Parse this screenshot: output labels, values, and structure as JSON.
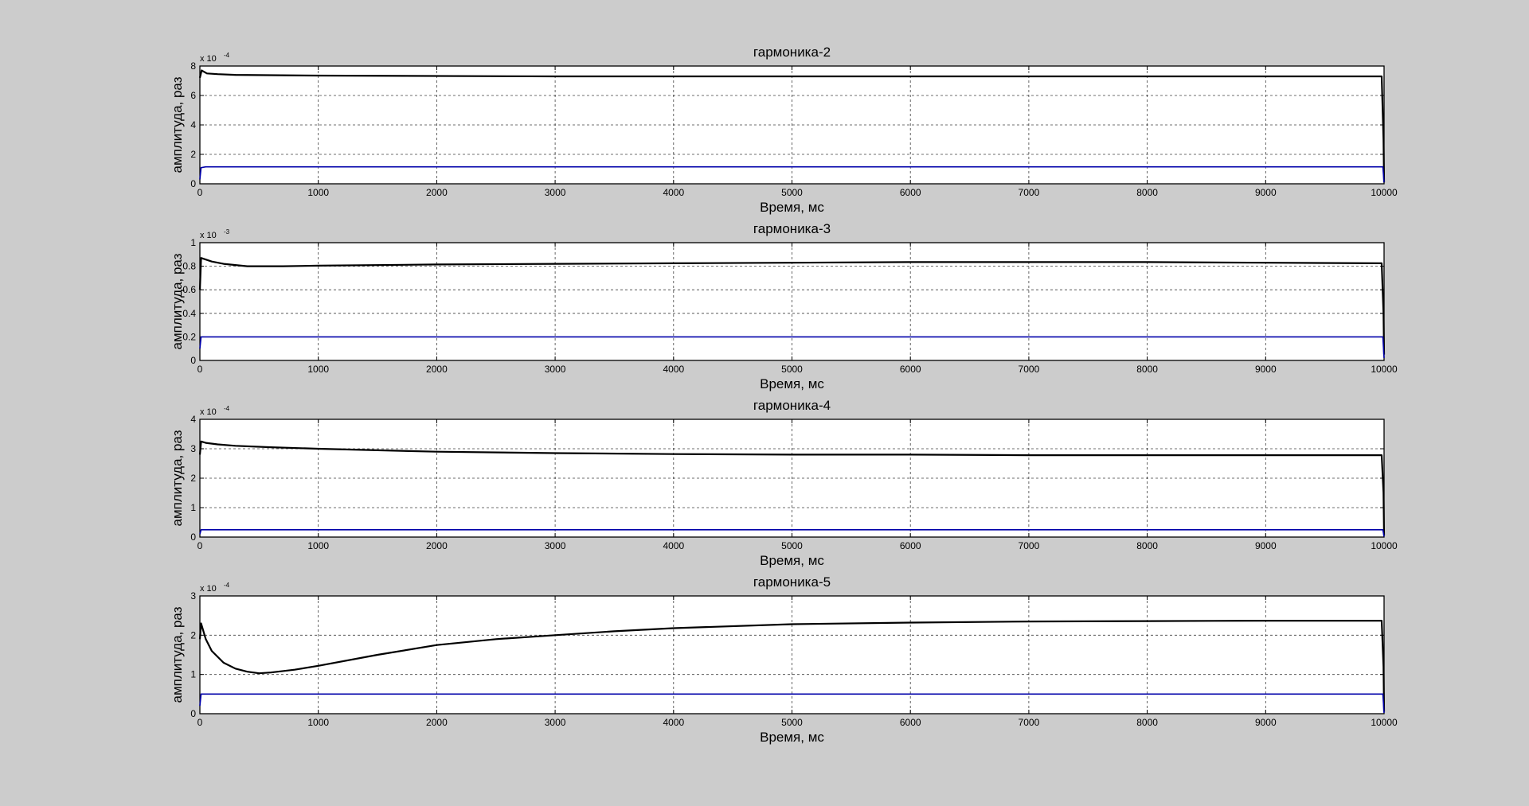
{
  "figure": {
    "background": "#cccccc"
  },
  "chart_data": [
    {
      "type": "line",
      "title": "гармоника-2",
      "xlabel": "Время, мс",
      "ylabel": "амплитуда, раз",
      "xlim": [
        0,
        10000
      ],
      "ylim": [
        0,
        8
      ],
      "x_ticks": [
        "0",
        "1000",
        "2000",
        "3000",
        "4000",
        "5000",
        "6000",
        "7000",
        "8000",
        "9000",
        "10000"
      ],
      "y_ticks": [
        "0",
        "2",
        "4",
        "6",
        "8"
      ],
      "y_exponent_base": "x 10",
      "y_exponent_power": "-4",
      "grid": true,
      "series": [
        {
          "color": "#000000",
          "x": [
            0,
            15,
            60,
            150,
            300,
            1000,
            3000,
            6000,
            9000,
            9980,
            9995,
            10000
          ],
          "y": [
            7.2,
            7.7,
            7.5,
            7.45,
            7.4,
            7.35,
            7.3,
            7.3,
            7.3,
            7.3,
            3.0,
            0.1
          ]
        },
        {
          "color": "#0000aa",
          "x": [
            0,
            10,
            50,
            1000,
            5000,
            9990,
            10000
          ],
          "y": [
            0.3,
            1.1,
            1.15,
            1.15,
            1.15,
            1.15,
            0.1
          ]
        }
      ]
    },
    {
      "type": "line",
      "title": "гармоника-3",
      "xlabel": "Время, мс",
      "ylabel": "амплитуда, раз",
      "xlim": [
        0,
        10000
      ],
      "ylim": [
        0,
        1
      ],
      "x_ticks": [
        "0",
        "1000",
        "2000",
        "3000",
        "4000",
        "5000",
        "6000",
        "7000",
        "8000",
        "9000",
        "10000"
      ],
      "y_ticks": [
        "0",
        "0.2",
        "0.4",
        "0.6",
        "0.8",
        "1"
      ],
      "y_exponent_base": "x 10",
      "y_exponent_power": "-3",
      "grid": true,
      "series": [
        {
          "color": "#000000",
          "x": [
            0,
            10,
            40,
            100,
            200,
            400,
            700,
            1000,
            2000,
            3000,
            4000,
            5000,
            6000,
            7000,
            8000,
            9000,
            9980,
            9995,
            10000
          ],
          "y": [
            0.6,
            0.87,
            0.86,
            0.84,
            0.82,
            0.8,
            0.8,
            0.805,
            0.815,
            0.82,
            0.825,
            0.83,
            0.835,
            0.835,
            0.835,
            0.83,
            0.825,
            0.4,
            0.05
          ]
        },
        {
          "color": "#0000aa",
          "x": [
            0,
            10,
            50,
            1000,
            5000,
            9990,
            10000
          ],
          "y": [
            0.1,
            0.2,
            0.2,
            0.2,
            0.2,
            0.2,
            0.02
          ]
        }
      ]
    },
    {
      "type": "line",
      "title": "гармоника-4",
      "xlabel": "Время, мс",
      "ylabel": "амплитуда, раз",
      "xlim": [
        0,
        10000
      ],
      "ylim": [
        0,
        4
      ],
      "x_ticks": [
        "0",
        "1000",
        "2000",
        "3000",
        "4000",
        "5000",
        "6000",
        "7000",
        "8000",
        "9000",
        "10000"
      ],
      "y_ticks": [
        "0",
        "1",
        "2",
        "3",
        "4"
      ],
      "y_exponent_base": "x 10",
      "y_exponent_power": "-4",
      "grid": true,
      "series": [
        {
          "color": "#000000",
          "x": [
            0,
            10,
            50,
            150,
            300,
            600,
            1000,
            1500,
            2000,
            3000,
            4000,
            5000,
            6000,
            7000,
            8000,
            9000,
            9980,
            9995,
            10000
          ],
          "y": [
            2.8,
            3.25,
            3.2,
            3.15,
            3.1,
            3.05,
            3.0,
            2.95,
            2.9,
            2.85,
            2.82,
            2.8,
            2.8,
            2.78,
            2.78,
            2.78,
            2.78,
            1.5,
            0.05
          ]
        },
        {
          "color": "#0000aa",
          "x": [
            0,
            10,
            50,
            1000,
            5000,
            9990,
            10000
          ],
          "y": [
            0.1,
            0.25,
            0.25,
            0.25,
            0.25,
            0.25,
            0.02
          ]
        }
      ]
    },
    {
      "type": "line",
      "title": "гармоника-5",
      "xlabel": "Время, мс",
      "ylabel": "амплитуда, раз",
      "xlim": [
        0,
        10000
      ],
      "ylim": [
        0,
        3
      ],
      "x_ticks": [
        "0",
        "1000",
        "2000",
        "3000",
        "4000",
        "5000",
        "6000",
        "7000",
        "8000",
        "9000",
        "10000"
      ],
      "y_ticks": [
        "0",
        "1",
        "2",
        "3"
      ],
      "y_exponent_base": "x 10",
      "y_exponent_power": "-4",
      "grid": true,
      "series": [
        {
          "color": "#000000",
          "x": [
            0,
            10,
            50,
            100,
            200,
            300,
            400,
            500,
            600,
            800,
            1000,
            1500,
            2000,
            2500,
            3000,
            3500,
            4000,
            5000,
            6000,
            7000,
            8000,
            9000,
            9980,
            9995,
            10000
          ],
          "y": [
            1.9,
            2.3,
            1.9,
            1.6,
            1.3,
            1.15,
            1.07,
            1.03,
            1.05,
            1.12,
            1.22,
            1.5,
            1.75,
            1.9,
            2.0,
            2.1,
            2.18,
            2.28,
            2.32,
            2.35,
            2.36,
            2.37,
            2.37,
            1.2,
            0.05
          ]
        },
        {
          "color": "#0000aa",
          "x": [
            0,
            10,
            50,
            1000,
            5000,
            9990,
            10000
          ],
          "y": [
            0.2,
            0.5,
            0.5,
            0.5,
            0.5,
            0.5,
            0.02
          ]
        }
      ]
    }
  ]
}
